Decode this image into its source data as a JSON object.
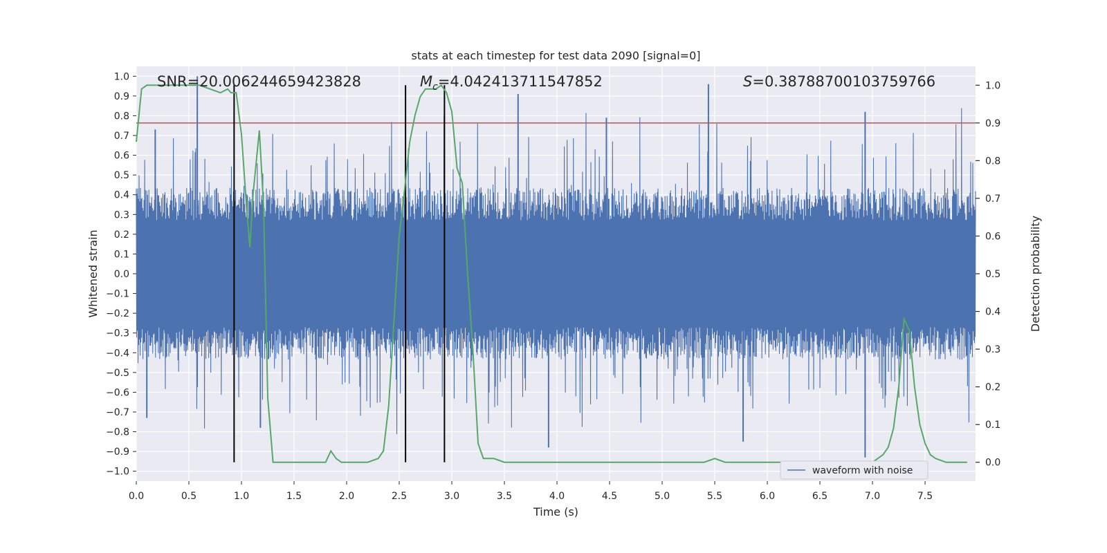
{
  "chart_data": {
    "type": "line",
    "title": "stats at each timestep for test data 2090 [signal=0]",
    "xlabel": "Time (s)",
    "ylabel_left": "Whitened strain",
    "ylabel_right": "Detection probability",
    "xlim": [
      0.0,
      7.98
    ],
    "ylim_left": [
      -1.05,
      1.05
    ],
    "ylim_right": [
      -0.05,
      1.05
    ],
    "x_ticks": [
      "0.0",
      "0.5",
      "1.0",
      "1.5",
      "2.0",
      "2.5",
      "3.0",
      "3.5",
      "4.0",
      "4.5",
      "5.0",
      "5.5",
      "6.0",
      "6.5",
      "7.0",
      "7.5"
    ],
    "x_tick_values": [
      0.0,
      0.5,
      1.0,
      1.5,
      2.0,
      2.5,
      3.0,
      3.5,
      4.0,
      4.5,
      5.0,
      5.5,
      6.0,
      6.5,
      7.0,
      7.5
    ],
    "y_ticks_left": [
      "1.0",
      "0.9",
      "0.8",
      "0.7",
      "0.6",
      "0.5",
      "0.4",
      "0.3",
      "0.2",
      "0.1",
      "0.0",
      "−0.1",
      "−0.2",
      "−0.3",
      "−0.4",
      "−0.5",
      "−0.6",
      "−0.7",
      "−0.8",
      "−0.9",
      "−1.0"
    ],
    "y_tick_values_left": [
      1.0,
      0.9,
      0.8,
      0.7,
      0.6,
      0.5,
      0.4,
      0.3,
      0.2,
      0.1,
      0.0,
      -0.1,
      -0.2,
      -0.3,
      -0.4,
      -0.5,
      -0.6,
      -0.7,
      -0.8,
      -0.9,
      -1.0
    ],
    "y_ticks_right": [
      "1.0",
      "0.9",
      "0.8",
      "0.7",
      "0.6",
      "0.5",
      "0.4",
      "0.3",
      "0.2",
      "0.1",
      "0.0"
    ],
    "y_tick_values_right": [
      1.0,
      0.9,
      0.8,
      0.7,
      0.6,
      0.5,
      0.4,
      0.3,
      0.2,
      0.1,
      0.0
    ],
    "grid": true,
    "legend": {
      "position": "bottom-right",
      "entries": [
        "waveform with noise"
      ]
    },
    "annotations": {
      "snr": "SNR=20.006244659423828",
      "mc_symbol": "M",
      "mc_subscript": "c",
      "mc_value": "=4.042413711547852",
      "s_symbol": "S",
      "s_value": "=0.38788700103759766"
    },
    "threshold": {
      "value": 0.9,
      "axis": "right",
      "color": "#c44e52"
    },
    "vertical_markers": [
      {
        "x": 0.93,
        "from": 0.0,
        "to": 1.0
      },
      {
        "x": 2.56,
        "from": 0.0,
        "to": 1.0
      },
      {
        "x": 2.93,
        "from": 0.0,
        "to": 1.0
      }
    ],
    "series": [
      {
        "name": "waveform with noise",
        "axis": "left",
        "color": "#4c72b0",
        "kind": "dense noise",
        "x_range": [
          0.0,
          7.98
        ],
        "typical_amplitude": 0.3,
        "spikes": [
          {
            "x": 0.58,
            "y": 1.0
          },
          {
            "x": 3.63,
            "y": 0.91
          },
          {
            "x": 5.44,
            "y": 0.96
          },
          {
            "x": 6.93,
            "y": 0.82
          },
          {
            "x": 4.47,
            "y": 0.79
          },
          {
            "x": 3.92,
            "y": -0.88
          },
          {
            "x": 6.93,
            "y": -0.93
          },
          {
            "x": 5.77,
            "y": -0.85
          },
          {
            "x": 1.18,
            "y": -0.78
          },
          {
            "x": 0.18,
            "y": 0.73
          },
          {
            "x": 0.1,
            "y": -0.73
          }
        ]
      },
      {
        "name": "",
        "axis": "right",
        "color": "#55a868",
        "x": [
          0.0,
          0.05,
          0.1,
          0.2,
          0.3,
          0.4,
          0.5,
          0.6,
          0.7,
          0.8,
          0.87,
          0.9,
          0.95,
          1.0,
          1.05,
          1.08,
          1.11,
          1.17,
          1.21,
          1.25,
          1.3,
          1.35,
          1.4,
          1.5,
          1.6,
          1.7,
          1.75,
          1.8,
          1.85,
          1.9,
          1.95,
          2.0,
          2.1,
          2.2,
          2.3,
          2.35,
          2.4,
          2.5,
          2.55,
          2.6,
          2.65,
          2.7,
          2.75,
          2.8,
          2.85,
          2.9,
          2.95,
          3.0,
          3.05,
          3.1,
          3.15,
          3.2,
          3.25,
          3.3,
          3.4,
          3.5,
          3.7,
          4.0,
          4.5,
          5.0,
          5.2,
          5.4,
          5.5,
          5.6,
          5.8,
          6.0,
          6.5,
          7.0,
          7.05,
          7.1,
          7.15,
          7.2,
          7.25,
          7.3,
          7.35,
          7.4,
          7.45,
          7.5,
          7.55,
          7.6,
          7.7,
          7.8,
          7.9
        ],
        "values": [
          0.85,
          0.99,
          1.0,
          1.0,
          1.0,
          1.0,
          1.0,
          1.0,
          0.99,
          0.98,
          0.99,
          0.98,
          0.98,
          0.87,
          0.67,
          0.57,
          0.71,
          0.88,
          0.68,
          0.17,
          0.0,
          0.0,
          0.0,
          0.0,
          0.0,
          0.0,
          0.0,
          0.0,
          0.03,
          0.01,
          0.0,
          0.0,
          0.0,
          0.0,
          0.01,
          0.03,
          0.15,
          0.6,
          0.72,
          0.85,
          0.92,
          0.97,
          0.99,
          0.99,
          0.99,
          1.0,
          0.98,
          0.93,
          0.78,
          0.74,
          0.5,
          0.3,
          0.05,
          0.01,
          0.01,
          0.0,
          0.0,
          0.0,
          0.0,
          0.0,
          0.0,
          0.0,
          0.01,
          0.0,
          0.0,
          0.0,
          0.0,
          0.0,
          0.01,
          0.02,
          0.04,
          0.09,
          0.2,
          0.38,
          0.35,
          0.2,
          0.1,
          0.05,
          0.02,
          0.01,
          0.0,
          0.0,
          0.0
        ]
      }
    ]
  }
}
